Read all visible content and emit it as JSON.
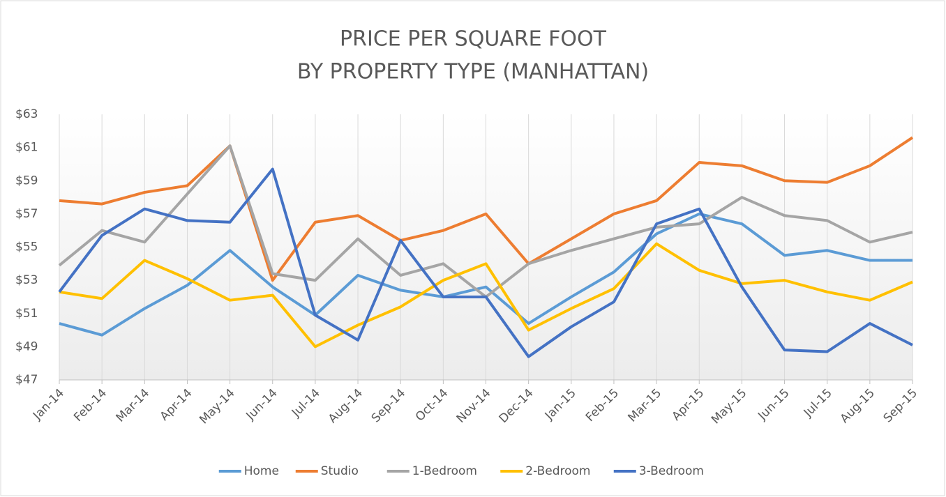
{
  "chart_data": {
    "type": "line",
    "title": [
      "PRICE PER SQUARE FOOT",
      "BY PROPERTY TYPE (MANHATTAN)"
    ],
    "categories": [
      "Jan-14",
      "Feb-14",
      "Mar-14",
      "Apr-14",
      "May-14",
      "Jun-14",
      "Jul-14",
      "Aug-14",
      "Sep-14",
      "Oct-14",
      "Nov-14",
      "Dec-14",
      "Jan-15",
      "Feb-15",
      "Mar-15",
      "Apr-15",
      "May-15",
      "Jun-15",
      "Jul-15",
      "Aug-15",
      "Sep-15"
    ],
    "series": [
      {
        "name": "Home",
        "color": "#5b9bd5",
        "values": [
          50.4,
          49.7,
          51.3,
          52.7,
          54.8,
          52.6,
          50.9,
          53.3,
          52.4,
          52.0,
          52.6,
          50.4,
          52.0,
          53.5,
          55.8,
          57.0,
          56.4,
          54.5,
          54.8,
          54.2,
          54.2
        ]
      },
      {
        "name": "Studio",
        "color": "#ed7d31",
        "values": [
          57.8,
          57.6,
          58.3,
          58.7,
          61.1,
          53.0,
          56.5,
          56.9,
          55.4,
          56.0,
          57.0,
          54.0,
          55.5,
          57.0,
          57.8,
          60.1,
          59.9,
          59.0,
          58.9,
          59.9,
          61.6
        ]
      },
      {
        "name": "1-Bedroom",
        "color": "#a5a5a5",
        "values": [
          53.9,
          56.0,
          55.3,
          58.2,
          61.1,
          53.4,
          53.0,
          55.5,
          53.3,
          54.0,
          52.0,
          54.0,
          54.8,
          55.5,
          56.2,
          56.4,
          58.0,
          56.9,
          56.6,
          55.3,
          55.9
        ]
      },
      {
        "name": "2-Bedroom",
        "color": "#ffc000",
        "values": [
          52.3,
          51.9,
          54.2,
          53.1,
          51.8,
          52.1,
          49.0,
          50.3,
          51.4,
          53.0,
          54.0,
          50.0,
          51.3,
          52.5,
          55.2,
          53.6,
          52.8,
          53.0,
          52.3,
          51.8,
          52.9
        ]
      },
      {
        "name": "3-Bedroom",
        "color": "#4472c4",
        "values": [
          52.3,
          55.7,
          57.3,
          56.6,
          56.5,
          59.7,
          50.9,
          49.4,
          55.4,
          52.0,
          52.0,
          48.4,
          50.2,
          51.7,
          56.4,
          57.3,
          52.6,
          48.8,
          48.7,
          50.4,
          49.1
        ]
      }
    ],
    "ylim": [
      47,
      63
    ],
    "yticks": [
      {
        "value": 47,
        "label": "$47"
      },
      {
        "value": 49,
        "label": "$49"
      },
      {
        "value": 51,
        "label": "$51"
      },
      {
        "value": 53,
        "label": "$53"
      },
      {
        "value": 55,
        "label": "$55"
      },
      {
        "value": 57,
        "label": "$57"
      },
      {
        "value": 59,
        "label": "$59"
      },
      {
        "value": 61,
        "label": "$61"
      },
      {
        "value": 63,
        "label": "$63"
      }
    ],
    "grid": true,
    "legend": "bottom"
  }
}
